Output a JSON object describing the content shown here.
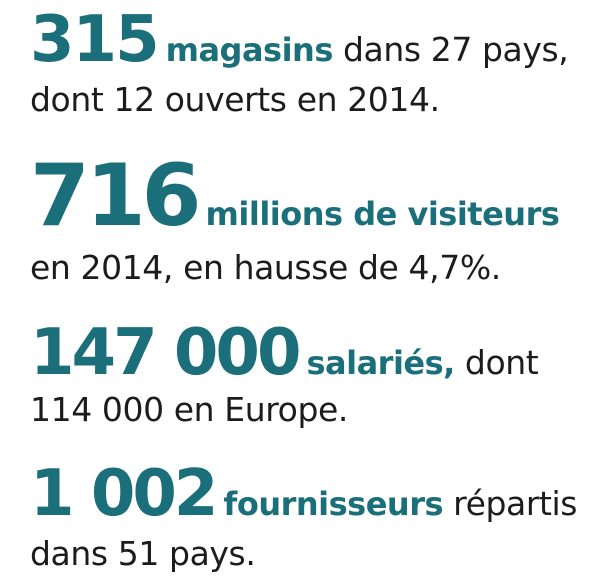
{
  "accent_color": "#1b6f7a",
  "stats": [
    {
      "number": "315",
      "keyword": "magasins",
      "rest": " dans 27 pays,",
      "line2": "dont 12 ouverts en 2014."
    },
    {
      "number": "716",
      "keyword": "millions de visiteurs",
      "rest": "",
      "line2": "en 2014, en hausse de 4,7%."
    },
    {
      "number": "147 000",
      "keyword": "salariés,",
      "rest": " dont",
      "line2": "114 000 en Europe."
    },
    {
      "number": "1 002",
      "keyword": "fournisseurs",
      "rest": " répartis",
      "line2": "dans 51 pays."
    }
  ]
}
